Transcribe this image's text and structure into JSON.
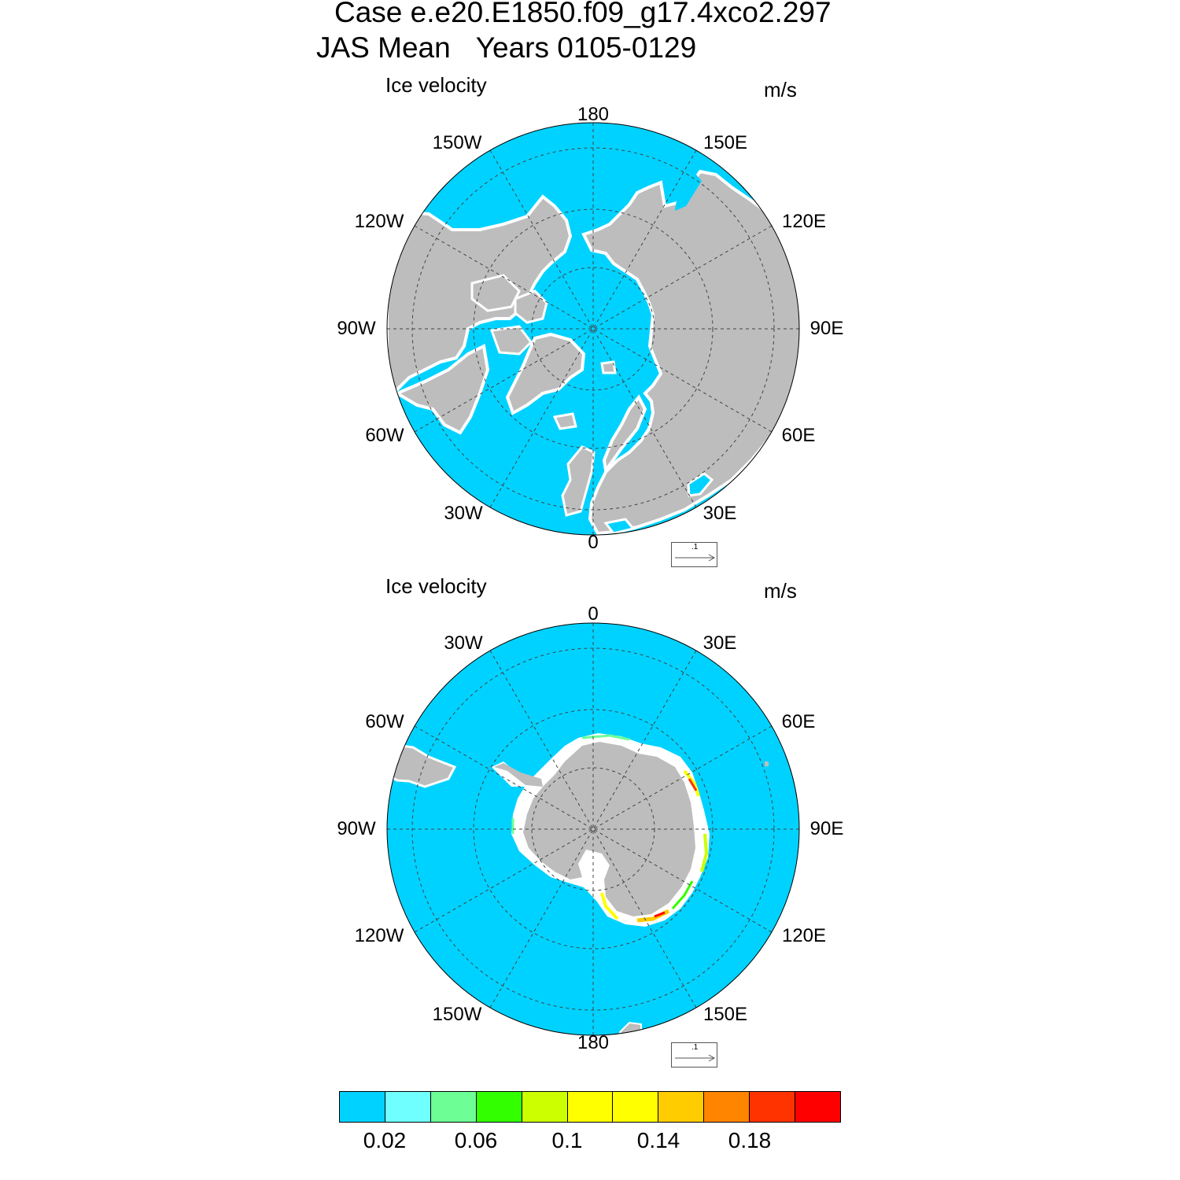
{
  "title": {
    "line1": "Case e.e20.E1850.f09_g17.4xco2.297",
    "line2_a": "JAS Mean",
    "line2_b": "Years 0105-0129"
  },
  "panels": [
    {
      "name": "north",
      "left_label": "Ice velocity",
      "right_label": "m/s",
      "lon_labels": {
        "top": "180",
        "bottom": "0",
        "ul": "150W",
        "ur": "150E",
        "ml_up": "120W",
        "mr_up": "120E",
        "left": "90W",
        "right": "90E",
        "ml_dn": "60W",
        "mr_dn": "60E",
        "ll": "30W",
        "lr": "30E"
      },
      "ref_vector": ".1"
    },
    {
      "name": "south",
      "left_label": "Ice velocity",
      "right_label": "m/s",
      "lon_labels": {
        "top": "0",
        "bottom": "180",
        "ul": "30W",
        "ur": "30E",
        "ml_up": "60W",
        "mr_up": "60E",
        "left": "90W",
        "right": "90E",
        "ml_dn": "120W",
        "mr_dn": "120E",
        "ll": "150W",
        "lr": "150E"
      },
      "ref_vector": ".1"
    }
  ],
  "colors": {
    "ocean": "#00d2ff",
    "land": "#bdbdbd",
    "coast": "#ffffff"
  },
  "colorbar": {
    "colors": [
      "#00d2ff",
      "#6fffff",
      "#6dff96",
      "#32ff00",
      "#ccff00",
      "#ffff00",
      "#ffff00",
      "#ffcc00",
      "#ff8400",
      "#ff3300",
      "#ff0000"
    ],
    "labels": [
      "0.02",
      "0.06",
      "0.1",
      "0.14",
      "0.18"
    ]
  }
}
